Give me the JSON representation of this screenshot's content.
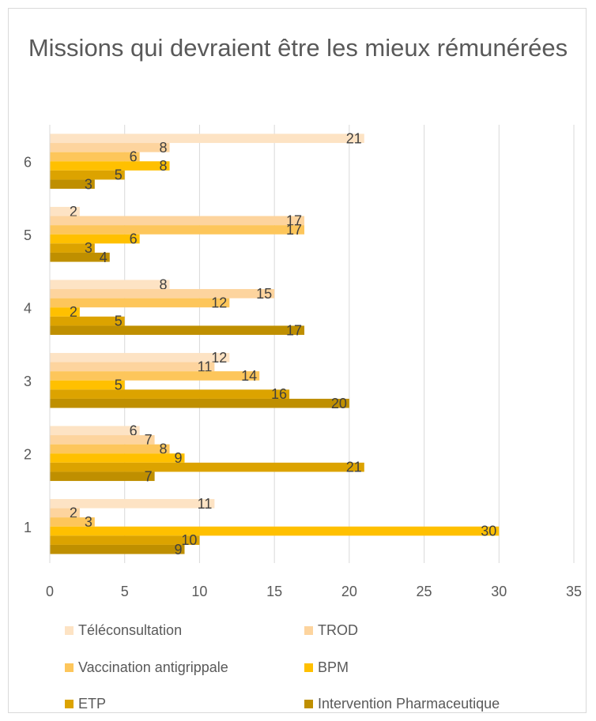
{
  "chart_data": {
    "type": "bar",
    "orientation": "horizontal",
    "title": "Missions qui devraient être les mieux rémunérées",
    "categories": [
      "1",
      "2",
      "3",
      "4",
      "5",
      "6"
    ],
    "series": [
      {
        "name": "Téléconsultation",
        "color": "#fde3c4",
        "values": [
          11,
          6,
          12,
          8,
          2,
          21
        ]
      },
      {
        "name": "TROD",
        "color": "#fdd49e",
        "values": [
          2,
          7,
          11,
          15,
          17,
          8
        ]
      },
      {
        "name": "Vaccination antigrippale",
        "color": "#fdc65b",
        "values": [
          3,
          8,
          14,
          12,
          17,
          6
        ]
      },
      {
        "name": "BPM",
        "color": "#ffc000",
        "values": [
          30,
          9,
          5,
          2,
          6,
          8
        ]
      },
      {
        "name": "ETP",
        "color": "#dca300",
        "values": [
          10,
          21,
          16,
          5,
          3,
          5
        ]
      },
      {
        "name": "Intervention Pharmaceutique",
        "color": "#bf8f00",
        "values": [
          9,
          7,
          20,
          17,
          4,
          3
        ]
      }
    ],
    "x_ticks": [
      "0",
      "5",
      "10",
      "15",
      "20",
      "25",
      "30",
      "35"
    ],
    "xlim": [
      0,
      35
    ],
    "grid": "vertical",
    "legend_position": "bottom"
  }
}
